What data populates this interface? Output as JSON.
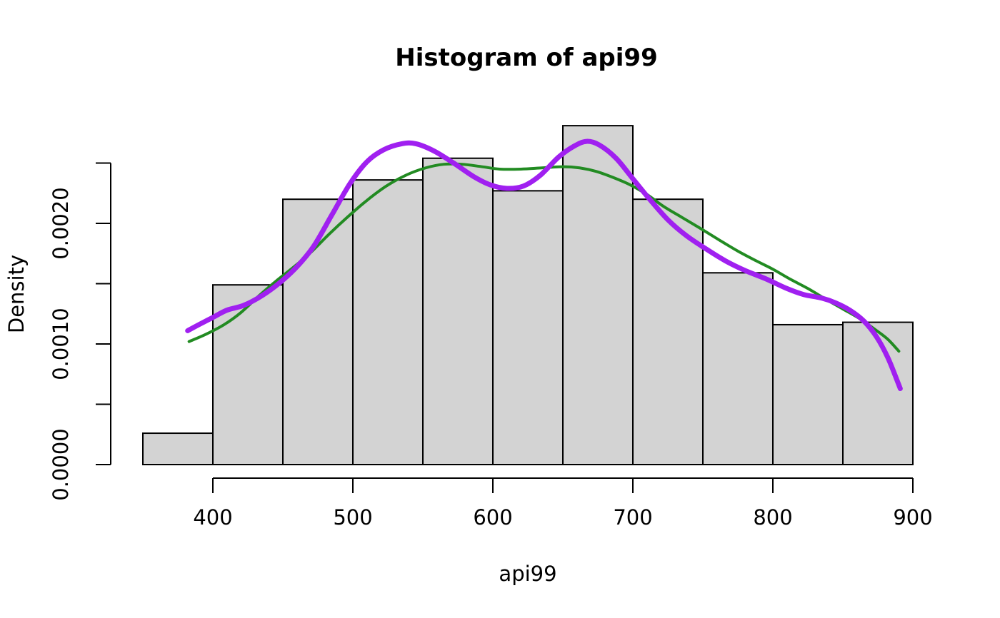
{
  "title": "Histogram of api99",
  "colors": {
    "background": "#FFFFFF",
    "bar_fill": "#D3D3D3",
    "bar_border": "#000000",
    "axis": "#000000",
    "text": "#000000",
    "purple_curve": "#A020F0",
    "green_curve": "#228B22"
  },
  "chart_data": {
    "type": "bar",
    "subtype": "histogram",
    "title": "Histogram of api99",
    "xlabel": "api99",
    "ylabel": "Density",
    "grid": false,
    "legend": "none",
    "xlim": [
      350,
      900
    ],
    "ylim": [
      0,
      0.0025
    ],
    "bin_edges": [
      350,
      400,
      450,
      500,
      550,
      600,
      650,
      700,
      750,
      800,
      850,
      900
    ],
    "densities": [
      0.00026,
      0.00149,
      0.0022,
      0.00236,
      0.00254,
      0.00227,
      0.00281,
      0.0022,
      0.00159,
      0.00116,
      0.00118
    ],
    "x_tick_values": [
      400,
      500,
      600,
      700,
      800,
      900
    ],
    "x_tick_labels": [
      "400",
      "500",
      "600",
      "700",
      "800",
      "900"
    ],
    "y_tick_values": [
      0.0,
      0.0005,
      0.001,
      0.0015,
      0.002,
      0.0025
    ],
    "y_tick_labels": [
      "0.0000",
      "",
      "0.0010",
      "",
      "0.0020",
      ""
    ],
    "curves": [
      {
        "name": "green-density-curve",
        "color": "#228B22",
        "stroke_width": 4,
        "points": [
          [
            383,
            0.00102
          ],
          [
            395,
            0.00108
          ],
          [
            408,
            0.00116
          ],
          [
            420,
            0.00126
          ],
          [
            433,
            0.0014
          ],
          [
            445,
            0.00152
          ],
          [
            458,
            0.00164
          ],
          [
            470,
            0.00176
          ],
          [
            483,
            0.00191
          ],
          [
            496,
            0.00205
          ],
          [
            510,
            0.00219
          ],
          [
            524,
            0.00231
          ],
          [
            538,
            0.0024
          ],
          [
            552,
            0.00246
          ],
          [
            565,
            0.00249
          ],
          [
            578,
            0.00249
          ],
          [
            592,
            0.00247
          ],
          [
            605,
            0.00245
          ],
          [
            620,
            0.00245
          ],
          [
            635,
            0.00246
          ],
          [
            650,
            0.00247
          ],
          [
            662,
            0.00246
          ],
          [
            674,
            0.00243
          ],
          [
            686,
            0.00238
          ],
          [
            698,
            0.00232
          ],
          [
            710,
            0.00224
          ],
          [
            722,
            0.00214
          ],
          [
            735,
            0.00205
          ],
          [
            748,
            0.00196
          ],
          [
            762,
            0.00186
          ],
          [
            775,
            0.00177
          ],
          [
            788,
            0.00169
          ],
          [
            800,
            0.00162
          ],
          [
            812,
            0.00154
          ],
          [
            825,
            0.00146
          ],
          [
            838,
            0.00137
          ],
          [
            850,
            0.00129
          ],
          [
            862,
            0.00121
          ],
          [
            873,
            0.00112
          ],
          [
            882,
            0.00104
          ],
          [
            890,
            0.00094
          ]
        ]
      },
      {
        "name": "purple-density-curve",
        "color": "#A020F0",
        "stroke_width": 7,
        "points": [
          [
            382,
            0.00111
          ],
          [
            390,
            0.00116
          ],
          [
            400,
            0.00122
          ],
          [
            410,
            0.00128
          ],
          [
            422,
            0.00132
          ],
          [
            435,
            0.0014
          ],
          [
            448,
            0.00151
          ],
          [
            460,
            0.00164
          ],
          [
            472,
            0.00181
          ],
          [
            485,
            0.00207
          ],
          [
            498,
            0.00233
          ],
          [
            510,
            0.00251
          ],
          [
            522,
            0.00261
          ],
          [
            535,
            0.00266
          ],
          [
            545,
            0.00266
          ],
          [
            558,
            0.0026
          ],
          [
            572,
            0.0025
          ],
          [
            586,
            0.00239
          ],
          [
            598,
            0.00232
          ],
          [
            610,
            0.00229
          ],
          [
            622,
            0.00231
          ],
          [
            634,
            0.0024
          ],
          [
            647,
            0.00255
          ],
          [
            658,
            0.00264
          ],
          [
            667,
            0.00268
          ],
          [
            676,
            0.00265
          ],
          [
            688,
            0.00254
          ],
          [
            700,
            0.00237
          ],
          [
            712,
            0.0022
          ],
          [
            725,
            0.00203
          ],
          [
            738,
            0.0019
          ],
          [
            752,
            0.00179
          ],
          [
            766,
            0.00169
          ],
          [
            780,
            0.00161
          ],
          [
            795,
            0.00154
          ],
          [
            810,
            0.00146
          ],
          [
            822,
            0.00141
          ],
          [
            835,
            0.00138
          ],
          [
            845,
            0.00134
          ],
          [
            855,
            0.00128
          ],
          [
            865,
            0.00119
          ],
          [
            874,
            0.00106
          ],
          [
            882,
            0.00089
          ],
          [
            889,
            0.00069
          ],
          [
            891,
            0.00063
          ]
        ]
      }
    ]
  }
}
